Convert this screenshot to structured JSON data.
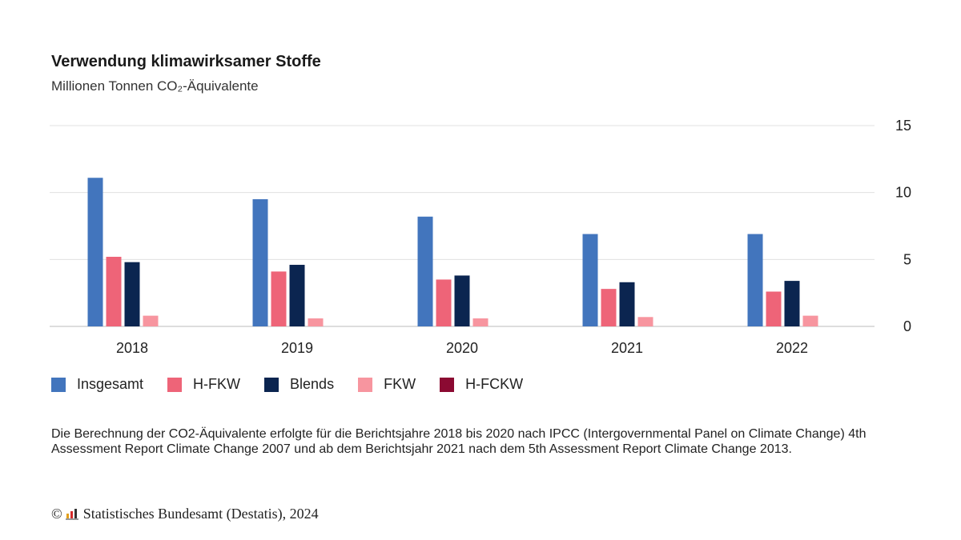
{
  "title": "Verwendung klimawirksamer Stoffe",
  "subtitle": "Millionen Tonnen CO₂-Äquivalente",
  "footnote": "Die Berechnung der CO2-Äquivalente erfolgte für die Berichtsjahre 2018 bis 2020 nach IPCC (Intergovernmental Panel on Climate Change) 4th Assessment Report Climate Change 2007 und ab dem Berichtsjahr 2021 nach dem 5th Assessment Report Climate Change 2013.",
  "source": {
    "copyright_symbol": "©",
    "text": "Statistisches Bundesamt (Destatis), 2024"
  },
  "colors": {
    "Insgesamt": "#4275bd",
    "H-FKW": "#ee6478",
    "Blends": "#0b2550",
    "FKW": "#f7959f",
    "H-FCKW": "#8b0a32"
  },
  "chart_data": {
    "type": "bar",
    "categories": [
      "2018",
      "2019",
      "2020",
      "2021",
      "2022"
    ],
    "series": [
      {
        "name": "Insgesamt",
        "values": [
          11.1,
          9.5,
          8.2,
          6.9,
          6.9
        ]
      },
      {
        "name": "H-FKW",
        "values": [
          5.2,
          4.1,
          3.5,
          2.8,
          2.6
        ]
      },
      {
        "name": "Blends",
        "values": [
          4.8,
          4.6,
          3.8,
          3.3,
          3.4
        ]
      },
      {
        "name": "FKW",
        "values": [
          0.8,
          0.6,
          0.6,
          0.7,
          0.8
        ]
      },
      {
        "name": "H-FCKW",
        "values": [
          0,
          0,
          0,
          0,
          0
        ]
      }
    ],
    "yticks": [
      "0",
      "5",
      "10",
      "15"
    ],
    "ylim": [
      0,
      15
    ],
    "y_axis_position": "right",
    "grid": true,
    "legend_position": "bottom-left"
  }
}
